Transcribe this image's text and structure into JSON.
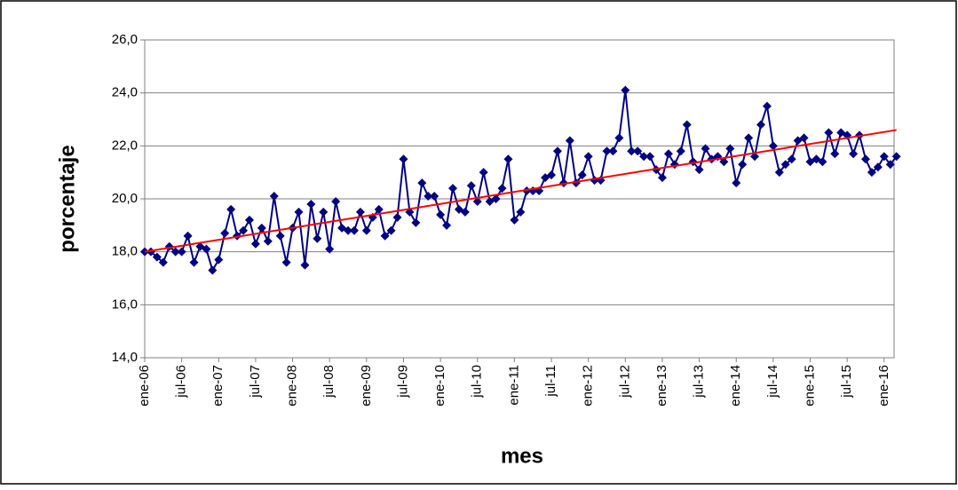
{
  "chart_data": {
    "type": "line",
    "x_label": "mes",
    "y_label": "porcentaje",
    "categories": [
      "ene-06",
      null,
      null,
      null,
      null,
      null,
      "jul-06",
      null,
      null,
      null,
      null,
      null,
      "ene-07",
      null,
      null,
      null,
      null,
      null,
      "jul-07",
      null,
      null,
      null,
      null,
      null,
      "ene-08",
      null,
      null,
      null,
      null,
      null,
      "jul-08",
      null,
      null,
      null,
      null,
      null,
      "ene-09",
      null,
      null,
      null,
      null,
      null,
      "jul-09",
      null,
      null,
      null,
      null,
      null,
      "ene-10",
      null,
      null,
      null,
      null,
      null,
      "jul-10",
      null,
      null,
      null,
      null,
      null,
      "ene-11",
      null,
      null,
      null,
      null,
      null,
      "jul-11",
      null,
      null,
      null,
      null,
      null,
      "ene-12",
      null,
      null,
      null,
      null,
      null,
      "jul-12",
      null,
      null,
      null,
      null,
      null,
      "ene-13",
      null,
      null,
      null,
      null,
      null,
      "jul-13",
      null,
      null,
      null,
      null,
      null,
      "ene-14",
      null,
      null,
      null,
      null,
      null,
      "jul-14",
      null,
      null,
      null,
      null,
      null,
      "ene-15",
      null,
      null,
      null,
      null,
      null,
      "jul-15",
      null,
      null,
      null,
      null,
      null,
      "ene-16",
      null,
      null
    ],
    "values": [
      18.0,
      18.0,
      17.8,
      17.6,
      18.2,
      18.0,
      18.0,
      18.6,
      17.6,
      18.2,
      18.1,
      17.3,
      17.7,
      18.7,
      19.6,
      18.6,
      18.8,
      19.2,
      18.3,
      18.9,
      18.4,
      20.1,
      18.6,
      17.6,
      18.9,
      19.5,
      17.5,
      19.8,
      18.5,
      19.5,
      18.1,
      19.9,
      18.9,
      18.8,
      18.8,
      19.5,
      18.8,
      19.3,
      19.6,
      18.6,
      18.8,
      19.3,
      21.5,
      19.5,
      19.1,
      20.6,
      20.1,
      20.1,
      19.4,
      19.0,
      20.4,
      19.6,
      19.5,
      20.5,
      19.9,
      21.0,
      19.9,
      20.0,
      20.4,
      21.5,
      19.2,
      19.5,
      20.3,
      20.3,
      20.3,
      20.8,
      20.9,
      21.8,
      20.6,
      22.2,
      20.6,
      20.9,
      21.6,
      20.7,
      20.7,
      21.8,
      21.8,
      22.3,
      24.1,
      21.8,
      21.8,
      21.6,
      21.6,
      21.1,
      20.8,
      21.7,
      21.3,
      21.8,
      22.8,
      21.4,
      21.1,
      21.9,
      21.5,
      21.6,
      21.4,
      21.9,
      20.6,
      21.3,
      22.3,
      21.6,
      22.8,
      23.5,
      22.0,
      21.0,
      21.3,
      21.5,
      22.2,
      22.3,
      21.4,
      21.5,
      21.4,
      22.5,
      21.7,
      22.5,
      22.4,
      21.7,
      22.4,
      21.5,
      21.0,
      21.2,
      21.6,
      21.3,
      21.6
    ],
    "color": "#000080",
    "trend_values": [
      18.0,
      22.6
    ],
    "trend_color": "#ff0000",
    "ylim": [
      14,
      26
    ],
    "yticks": [
      {
        "value": 14,
        "label": "14,0"
      },
      {
        "value": 16,
        "label": "16,0"
      },
      {
        "value": 18,
        "label": "18,0"
      },
      {
        "value": 20,
        "label": "20,0"
      },
      {
        "value": 22,
        "label": "22,0"
      },
      {
        "value": 24,
        "label": "24,0"
      },
      {
        "value": 26,
        "label": "26,0"
      }
    ],
    "grid": true
  }
}
